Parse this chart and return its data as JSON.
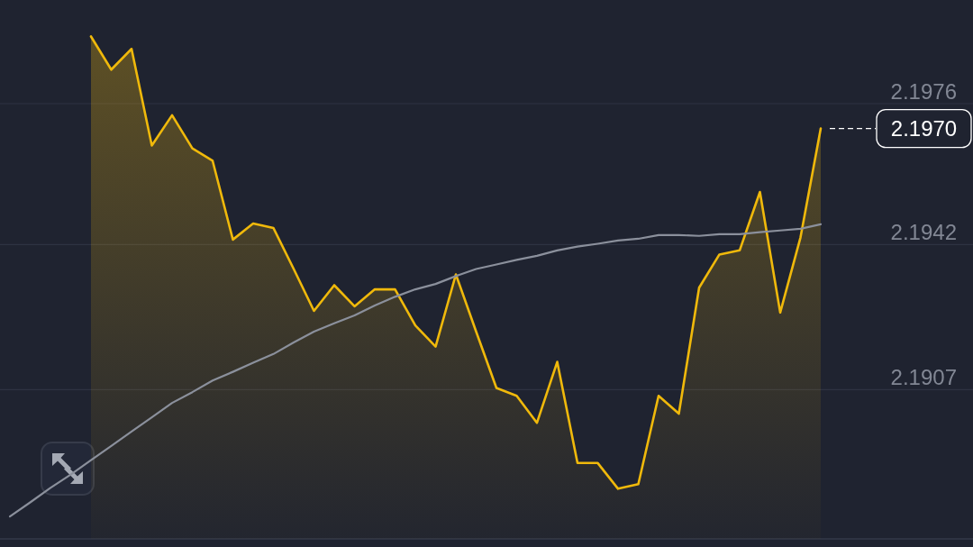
{
  "chart_data": {
    "type": "area",
    "categories": [
      null,
      null,
      null,
      null,
      null,
      null,
      null,
      null,
      null,
      null,
      null,
      null,
      null,
      null,
      null,
      null,
      null,
      null,
      null,
      null,
      null,
      null,
      null,
      null,
      null,
      null,
      null,
      null,
      null,
      null,
      null,
      null,
      null,
      null,
      null,
      null,
      null,
      null,
      null,
      null,
      null
    ],
    "series": [
      {
        "color": "#f0b90b",
        "values": [
          null,
          null,
          null,
          null,
          2.19922,
          2.19842,
          2.19892,
          2.19659,
          2.19732,
          2.19652,
          2.19622,
          2.19432,
          2.19471,
          2.1946,
          2.19361,
          2.1926,
          2.19322,
          2.19271,
          2.19312,
          2.19312,
          2.19225,
          2.19174,
          2.19348,
          2.1921,
          2.19074,
          2.19055,
          2.1899,
          2.19137,
          2.18893,
          2.18893,
          2.18831,
          2.18842,
          2.19055,
          2.19012,
          2.19316,
          2.19396,
          2.19406,
          2.19547,
          2.19256,
          2.19437,
          2.197
        ]
      },
      {
        "type": "line",
        "color": "#8b909c",
        "values": [
          2.18764,
          2.18798,
          2.18833,
          2.18865,
          2.189,
          2.18934,
          2.18969,
          2.19003,
          2.19038,
          2.19064,
          2.19092,
          2.19113,
          2.19135,
          2.19156,
          2.19184,
          2.1921,
          2.1923,
          2.19249,
          2.19273,
          2.19294,
          2.19312,
          2.19325,
          2.19344,
          2.19361,
          2.19372,
          2.19383,
          2.19393,
          2.19406,
          2.19415,
          2.19422,
          2.1943,
          2.19434,
          2.19443,
          2.19443,
          2.19441,
          2.19445,
          2.19445,
          2.1945,
          2.19454,
          2.19458,
          2.19469
        ]
      }
    ],
    "ylim": [
      2.1871,
      2.2001
    ],
    "yticks": [
      2.1907,
      2.1942,
      2.1976
    ],
    "grid": "y",
    "ref_lines": [
      {
        "axis": "y",
        "value": 2.197,
        "label": "2.1970",
        "line_style": "dashed",
        "color": "#ffffff"
      }
    ]
  }
}
